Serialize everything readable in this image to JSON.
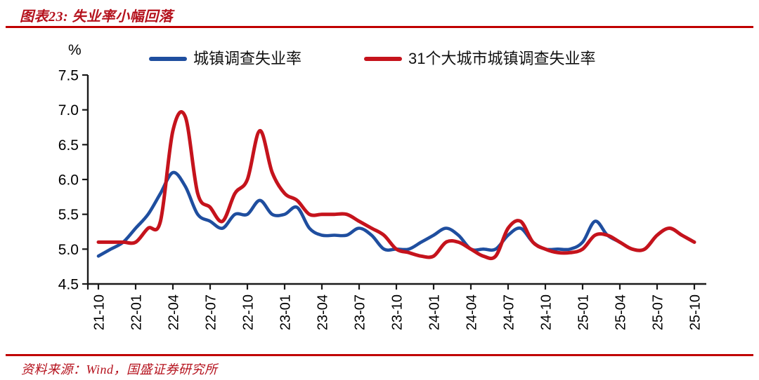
{
  "header": {
    "title": "图表23: 失业率小幅回落"
  },
  "footer": {
    "source": "资料来源：Wind，国盛证券研究所"
  },
  "colors": {
    "accent_red": "#c00000",
    "blue_line": "#1f4e9f",
    "red_line": "#c5131c",
    "axis": "#1a1a1a"
  },
  "chart_data": {
    "type": "line",
    "title": "失业率小幅回落",
    "unit_label": "%",
    "legend_position": "top",
    "grid": false,
    "ylim": [
      4.5,
      7.5
    ],
    "ytick_step": 0.5,
    "ytick_labels": [
      "4.5",
      "5.0",
      "5.5",
      "6.0",
      "6.5",
      "7.0",
      "7.5"
    ],
    "xtick_every": 3,
    "x": [
      "21-10",
      "21-11",
      "21-12",
      "22-01",
      "22-02",
      "22-03",
      "22-04",
      "22-05",
      "22-06",
      "22-07",
      "22-08",
      "22-09",
      "22-10",
      "22-11",
      "22-12",
      "23-01",
      "23-02",
      "23-03",
      "23-04",
      "23-05",
      "23-06",
      "23-07",
      "23-08",
      "23-09",
      "23-10",
      "23-11",
      "23-12",
      "24-01",
      "24-02",
      "24-03",
      "24-04",
      "24-05",
      "24-06",
      "24-07",
      "24-08",
      "24-09",
      "24-10",
      "24-11",
      "24-12",
      "25-01",
      "25-02",
      "25-03",
      "25-04",
      "25-05",
      "25-06",
      "25-07",
      "25-08",
      "25-09",
      "25-10"
    ],
    "series": [
      {
        "name": "城镇调查失业率",
        "color": "#1f4e9f",
        "values": [
          4.9,
          5.0,
          5.1,
          5.3,
          5.5,
          5.8,
          6.1,
          5.9,
          5.5,
          5.4,
          5.3,
          5.5,
          5.5,
          5.7,
          5.5,
          5.5,
          5.6,
          5.3,
          5.2,
          5.2,
          5.2,
          5.3,
          5.2,
          5.0,
          5.0,
          5.0,
          5.1,
          5.2,
          5.3,
          5.2,
          5.0,
          5.0,
          5.0,
          5.2,
          5.3,
          5.1,
          5.0,
          5.0,
          5.0,
          5.1,
          5.4,
          5.2,
          5.1,
          5.0,
          5.0,
          5.2,
          5.3,
          5.2,
          5.1
        ]
      },
      {
        "name": "31个大城市城镇调查失业率",
        "color": "#c5131c",
        "values": [
          5.1,
          5.1,
          5.1,
          5.1,
          5.3,
          5.4,
          6.7,
          6.9,
          5.8,
          5.6,
          5.4,
          5.8,
          6.0,
          6.7,
          6.1,
          5.8,
          5.7,
          5.5,
          5.5,
          5.5,
          5.5,
          5.4,
          5.3,
          5.2,
          5.0,
          4.95,
          4.9,
          4.9,
          5.1,
          5.1,
          5.0,
          4.9,
          4.9,
          5.3,
          5.4,
          5.1,
          5.0,
          4.95,
          4.95,
          5.0,
          5.2,
          5.2,
          5.1,
          5.0,
          5.0,
          5.2,
          5.3,
          5.2,
          5.1
        ]
      }
    ]
  }
}
